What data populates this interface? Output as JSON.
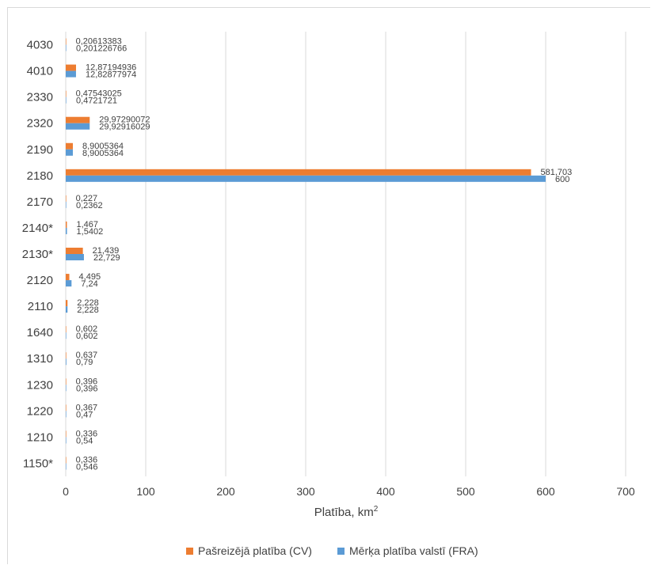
{
  "chart_data": {
    "type": "bar",
    "orientation": "horizontal",
    "title": "",
    "xlabel": "Platība, km",
    "xlabel_sup": "2",
    "ylabel": "",
    "xlim": [
      0,
      700
    ],
    "xticks": [
      0,
      100,
      200,
      300,
      400,
      500,
      600,
      700
    ],
    "grid": true,
    "legend_position": "bottom",
    "categories": [
      "4030",
      "4010",
      "2330",
      "2320",
      "2190",
      "2180",
      "2170",
      "2140*",
      "2130*",
      "2120",
      "2110",
      "1640",
      "1310",
      "1230",
      "1220",
      "1210",
      "1150*"
    ],
    "series": [
      {
        "name": "Pašreizējā platība (CV)",
        "color": "#ed7d31",
        "values": [
          0.20613383,
          12.87194936,
          0.47543025,
          29.97290072,
          8.9005364,
          581.703,
          0.227,
          1.467,
          21.439,
          4.495,
          2.228,
          0.602,
          0.637,
          0.396,
          0.367,
          0.336,
          0.336
        ],
        "labels": [
          "0,20613383",
          "12,87194936",
          "0,47543025",
          "29,97290072",
          "8,9005364",
          "581,703",
          "0,227",
          "1,467",
          "21,439",
          "4,495",
          "2,228",
          "0,602",
          "0,637",
          "0,396",
          "0,367",
          "0,336",
          "0,336"
        ]
      },
      {
        "name": "Mērķa platība valstī (FRA)",
        "color": "#5b9bd5",
        "values": [
          0.201226766,
          12.82877974,
          0.4721721,
          29.92916029,
          8.9005364,
          600,
          0.2362,
          1.5402,
          22.729,
          7.24,
          2.228,
          0.602,
          0.79,
          0.396,
          0.47,
          0.54,
          0.546
        ],
        "labels": [
          "0,201226766",
          "12,82877974",
          "0,4721721",
          "29,92916029",
          "8,9005364",
          "600",
          "0,2362",
          "1,5402",
          "22,729",
          "7,24",
          "2,228",
          "0,602",
          "0,79",
          "0,396",
          "0,47",
          "0,54",
          "0,546"
        ]
      }
    ]
  }
}
